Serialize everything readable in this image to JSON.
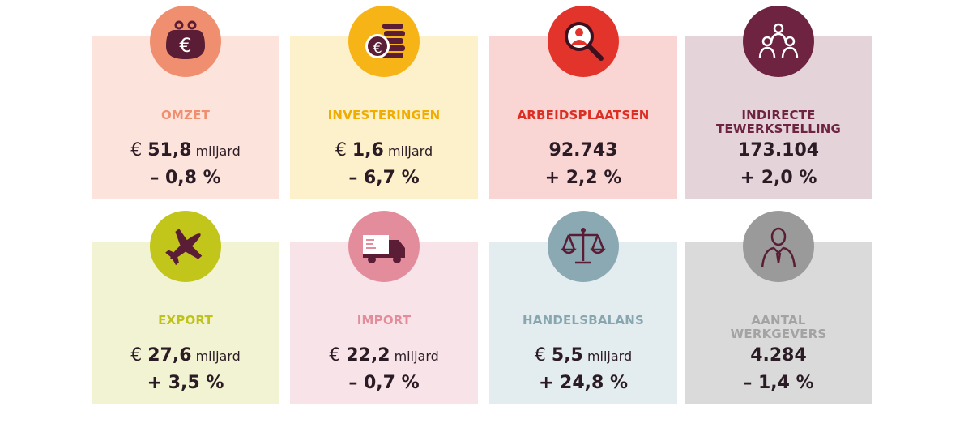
{
  "kpis": [
    {
      "label": "OMZET",
      "currency": "€",
      "value": "51,8",
      "unit": "miljard",
      "change": "– 0,8 %",
      "icon": "purse-euro-icon",
      "card_color": "#fce3dc",
      "circle_color": "#f08f70",
      "label_color": "#f08f70"
    },
    {
      "label": "INVESTERINGEN",
      "currency": "€",
      "value": "1,6",
      "unit": "miljard",
      "change": "– 6,7 %",
      "icon": "coins-euro-icon",
      "card_color": "#fdf1cc",
      "circle_color": "#f7b416",
      "label_color": "#f0ad00"
    },
    {
      "label": "ARBEIDSPLAATSEN",
      "currency": "",
      "value": "92.743",
      "unit": "",
      "change": "+ 2,2 %",
      "icon": "magnifier-person-icon",
      "card_color": "#f9d6d3",
      "circle_color": "#e2342b",
      "label_color": "#dd2e24"
    },
    {
      "label": "INDIRECTE\nTEWERKSTELLING",
      "currency": "",
      "value": "173.104",
      "unit": "",
      "change": "+ 2,0 %",
      "icon": "people-group-icon",
      "card_color": "#e4d4da",
      "circle_color": "#6e2440",
      "label_color": "#6e2440"
    },
    {
      "label": "EXPORT",
      "currency": "€",
      "value": "27,6",
      "unit": "miljard",
      "change": "+ 3,5 %",
      "icon": "airplane-icon",
      "card_color": "#f1f3d2",
      "circle_color": "#c2c51a",
      "label_color": "#bfc21a"
    },
    {
      "label": "IMPORT",
      "currency": "€",
      "value": "22,2",
      "unit": "miljard",
      "change": "– 0,7 %",
      "icon": "truck-icon",
      "card_color": "#f8e4e8",
      "circle_color": "#e38d9c",
      "label_color": "#e38d9c"
    },
    {
      "label": "HANDELSBALANS",
      "currency": "€",
      "value": "5,5",
      "unit": "miljard",
      "change": "+ 24,8 %",
      "icon": "scales-icon",
      "card_color": "#e3ecee",
      "circle_color": "#8aa9b3",
      "label_color": "#87a6b0"
    },
    {
      "label": "AANTAL\nWERKGEVERS",
      "currency": "",
      "value": "4.284",
      "unit": "",
      "change": "– 1,4 %",
      "icon": "businessman-icon",
      "card_color": "#dadada",
      "circle_color": "#9a9a9a",
      "label_color": "#a3a3a3"
    }
  ]
}
